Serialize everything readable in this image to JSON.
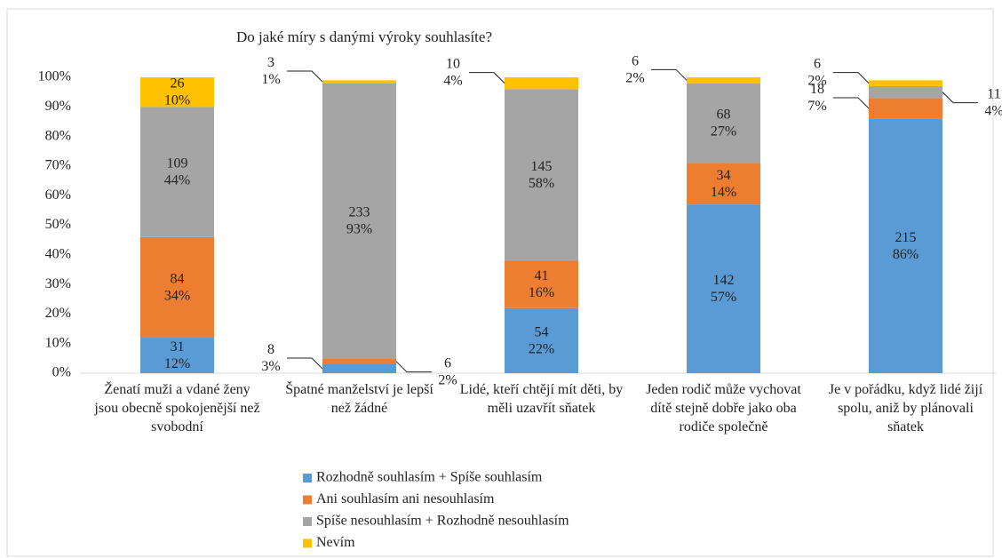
{
  "chart_data": {
    "type": "stacked_bar_percent",
    "title": "Do jaké míry  s danými výroky souhlasíte?",
    "categories": [
      "Ženatí muži a vdané ženy jsou obecně spokojenější než svobodní",
      "Špatné manželství je lepší než žádné",
      "Lidé, kteří chtějí mít děti, by měli uzavřít sňatek",
      "Jeden rodič může vychovat dítě stejně dobře jako oba rodiče společně",
      "Je v pořádku, když lidé žijí spolu, aniž by plánovali sňatek"
    ],
    "series": [
      {
        "name": "Rozhodně souhlasím + Spíše souhlasím",
        "color": "#5b9bd5",
        "values": [
          12,
          3,
          22,
          57,
          86
        ],
        "value_labels": [
          "12%",
          "3%",
          "22%",
          "57%",
          "86%"
        ],
        "counts": [
          31,
          8,
          54,
          142,
          215
        ]
      },
      {
        "name": "Ani souhlasím ani nesouhlasím",
        "color": "#ed7d31",
        "values": [
          34,
          2,
          16,
          14,
          7
        ],
        "value_labels": [
          "34%",
          "2%",
          "16%",
          "14%",
          "7%"
        ],
        "counts": [
          84,
          6,
          41,
          34,
          18
        ]
      },
      {
        "name": "Spíše nesouhlasím + Rozhodně nesouhlasím",
        "color": "#a5a5a5",
        "values": [
          44,
          93,
          58,
          27,
          4
        ],
        "value_labels": [
          "44%",
          "93%",
          "58%",
          "27%",
          "4%"
        ],
        "counts": [
          109,
          233,
          145,
          68,
          11
        ]
      },
      {
        "name": "Nevím",
        "color": "#ffc000",
        "values": [
          10,
          1,
          4,
          2,
          2
        ],
        "value_labels": [
          "10%",
          "1%",
          "4%",
          "2%",
          "2%"
        ],
        "counts": [
          26,
          3,
          10,
          6,
          6
        ]
      }
    ],
    "ylim": [
      0,
      100
    ],
    "yticks": [
      {
        "value": 0,
        "label": "0%"
      },
      {
        "value": 10,
        "label": "10%"
      },
      {
        "value": 20,
        "label": "20%"
      },
      {
        "value": 30,
        "label": "30%"
      },
      {
        "value": 40,
        "label": "40%"
      },
      {
        "value": 50,
        "label": "50%"
      },
      {
        "value": 60,
        "label": "60%"
      },
      {
        "value": 70,
        "label": "70%"
      },
      {
        "value": 80,
        "label": "80%"
      },
      {
        "value": 90,
        "label": "90%"
      },
      {
        "value": 100,
        "label": "100%"
      }
    ],
    "grid": false,
    "legend": "bottom"
  }
}
